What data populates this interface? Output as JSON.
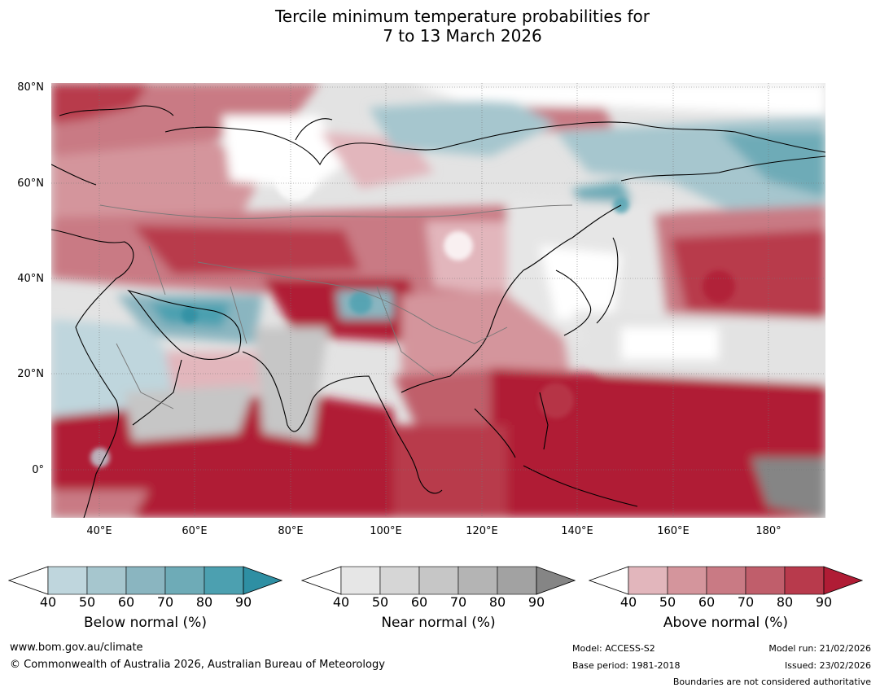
{
  "title": {
    "line1": "Tercile minimum temperature probabilities for",
    "line2": "7 to 13 March 2026"
  },
  "map": {
    "lat_labels": [
      "80°N",
      "60°N",
      "40°N",
      "20°N",
      "0°"
    ],
    "lon_labels": [
      "40°E",
      "60°E",
      "80°E",
      "100°E",
      "120°E",
      "140°E",
      "160°E",
      "180°"
    ]
  },
  "legends": [
    {
      "name": "Below normal (%)",
      "ticks": [
        "40",
        "50",
        "60",
        "70",
        "80",
        "90"
      ],
      "colors": [
        "#bfd6dd",
        "#a6c6ce",
        "#8ab5c0",
        "#6eabb7",
        "#4ca0b0",
        "#2e8fa3"
      ]
    },
    {
      "name": "Near normal (%)",
      "ticks": [
        "40",
        "50",
        "60",
        "70",
        "80",
        "90"
      ],
      "colors": [
        "#e6e6e6",
        "#d6d6d6",
        "#c6c6c6",
        "#b4b4b4",
        "#a2a2a2",
        "#858585"
      ]
    },
    {
      "name": "Above normal (%)",
      "ticks": [
        "40",
        "50",
        "60",
        "70",
        "80",
        "90"
      ],
      "colors": [
        "#e2b6bc",
        "#d4959c",
        "#c97a84",
        "#c05e6b",
        "#b83a4c",
        "#b01c35"
      ]
    }
  ],
  "footer": {
    "website": "www.bom.gov.au/climate",
    "copyright": "© Commonwealth of Australia 2026, Australian Bureau of Meteorology",
    "model": "Model: ACCESS-S2",
    "base_period": "Base period: 1981-2018",
    "model_run": "Model run: 21/02/2026",
    "issued": "Issued: 23/02/2026",
    "boundaries": "Boundaries are not considered authoritative"
  }
}
